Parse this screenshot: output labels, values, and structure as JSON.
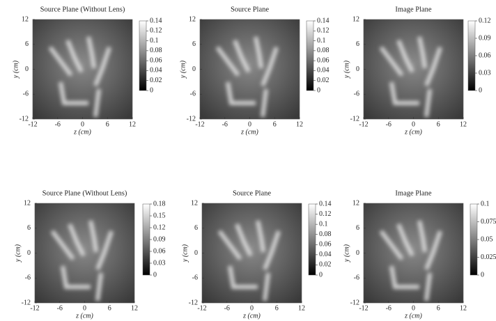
{
  "chart_data": [
    {
      "type": "heatmap",
      "title": "Source Plane (Without Lens)",
      "xlabel": "z (cm)",
      "ylabel": "y (cm)",
      "xlim": [
        -12,
        12
      ],
      "xticks": [
        -12,
        -6,
        0,
        6,
        12
      ],
      "ylim": [
        -12,
        12
      ],
      "yticks": [
        -12,
        -6,
        0,
        6,
        12
      ],
      "colorbar_lim": [
        0,
        0.14
      ],
      "colorbar_ticks": [
        0,
        0.02,
        0.04,
        0.06,
        0.08,
        0.1,
        0.12,
        0.14
      ]
    },
    {
      "type": "heatmap",
      "title": "Source Plane",
      "xlabel": "z (cm)",
      "ylabel": "y (cm)",
      "xlim": [
        -12,
        12
      ],
      "xticks": [
        -12,
        -6,
        0,
        6,
        12
      ],
      "ylim": [
        -12,
        12
      ],
      "yticks": [
        -12,
        -6,
        0,
        6,
        12
      ],
      "colorbar_lim": [
        0,
        0.14
      ],
      "colorbar_ticks": [
        0,
        0.02,
        0.04,
        0.06,
        0.08,
        0.1,
        0.12,
        0.14
      ]
    },
    {
      "type": "heatmap",
      "title": "Image Plane",
      "xlabel": "z (cm)",
      "ylabel": "y (cm)",
      "xlim": [
        -12,
        12
      ],
      "xticks": [
        -12,
        -6,
        0,
        6,
        12
      ],
      "ylim": [
        -12,
        12
      ],
      "yticks": [
        -12,
        -6,
        0,
        6,
        12
      ],
      "colorbar_lim": [
        0,
        0.12
      ],
      "colorbar_ticks": [
        0,
        0.03,
        0.06,
        0.09,
        0.12
      ]
    },
    {
      "type": "heatmap",
      "title": "Source Plane (Without Lens)",
      "xlabel": "z (cm)",
      "ylabel": "y (cm)",
      "xlim": [
        -12,
        12
      ],
      "xticks": [
        -12,
        -6,
        0,
        6,
        12
      ],
      "ylim": [
        -12,
        12
      ],
      "yticks": [
        -12,
        -6,
        0,
        6,
        12
      ],
      "colorbar_lim": [
        0,
        0.18
      ],
      "colorbar_ticks": [
        0,
        0.03,
        0.06,
        0.09,
        0.12,
        0.15,
        0.18
      ]
    },
    {
      "type": "heatmap",
      "title": "Source Plane",
      "xlabel": "z (cm)",
      "ylabel": "y (cm)",
      "xlim": [
        -12,
        12
      ],
      "xticks": [
        -12,
        -6,
        0,
        6,
        12
      ],
      "ylim": [
        -12,
        12
      ],
      "yticks": [
        -12,
        -6,
        0,
        6,
        12
      ],
      "colorbar_lim": [
        0,
        0.14
      ],
      "colorbar_ticks": [
        0,
        0.02,
        0.04,
        0.06,
        0.08,
        0.1,
        0.12,
        0.14
      ]
    },
    {
      "type": "heatmap",
      "title": "Image Plane",
      "xlabel": "z (cm)",
      "ylabel": "y (cm)",
      "xlim": [
        -12,
        12
      ],
      "xticks": [
        -12,
        -6,
        0,
        6,
        12
      ],
      "ylim": [
        -12,
        12
      ],
      "yticks": [
        -12,
        -6,
        0,
        6,
        12
      ],
      "colorbar_lim": [
        0,
        0.1
      ],
      "colorbar_ticks": [
        0,
        0.025,
        0.05,
        0.075,
        0.1
      ]
    }
  ]
}
